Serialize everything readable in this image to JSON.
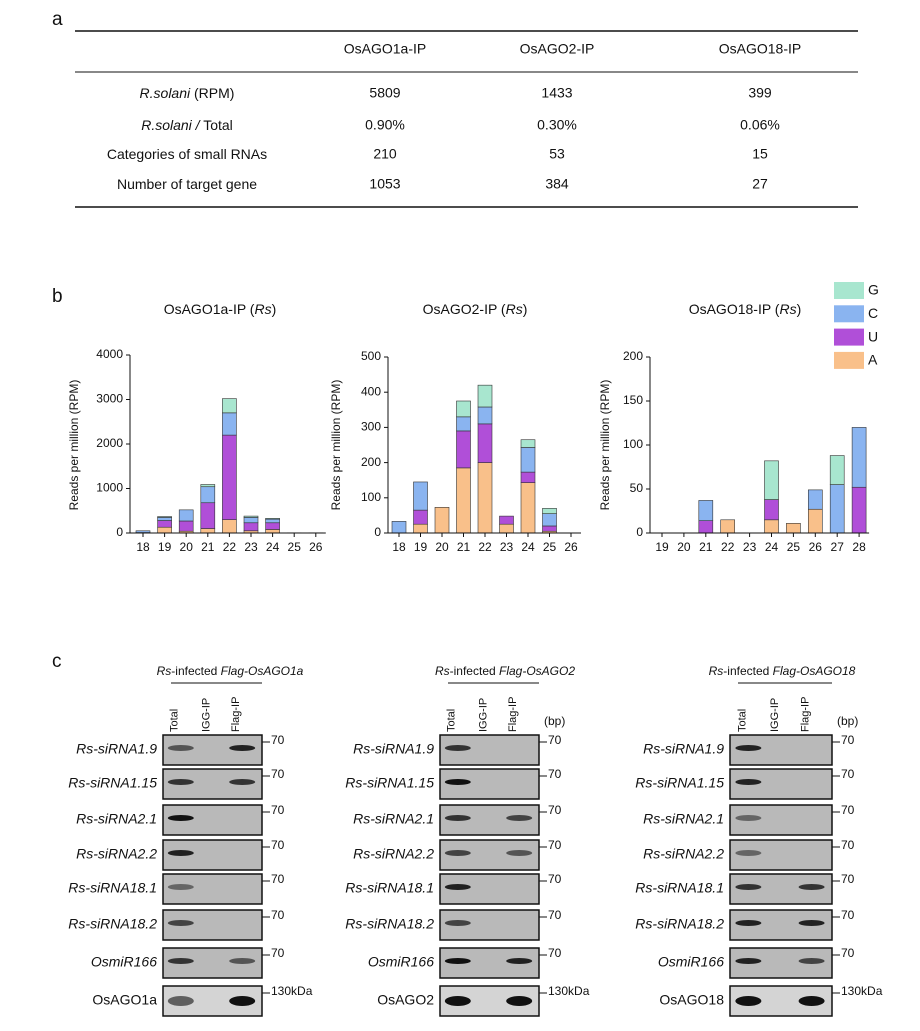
{
  "panel_a": {
    "label": "a",
    "columns": [
      "OsAGO1a-IP",
      "OsAGO2-IP",
      "OsAGO18-IP"
    ],
    "rows": [
      {
        "label": [
          {
            "text": "R.solani",
            "italic": true
          },
          {
            "text": " (RPM)"
          }
        ],
        "cells": [
          5809,
          1433,
          399
        ]
      },
      {
        "label": [
          {
            "text": "R.solani /",
            "italic": true
          },
          {
            "text": " Total"
          }
        ],
        "cells": [
          "0.90%",
          "0.30%",
          "0.06%"
        ]
      },
      {
        "label": [
          {
            "text": "Categories of small RNAs"
          }
        ],
        "cells": [
          210,
          53,
          15
        ]
      },
      {
        "label": [
          {
            "text": "Number of target gene"
          }
        ],
        "cells": [
          1053,
          384,
          27
        ]
      }
    ]
  },
  "panel_b": {
    "label": "b"
  },
  "chart_data": [
    {
      "type": "bar",
      "stacked": true,
      "title": [
        {
          "text": "OsAGO1a-IP ("
        },
        {
          "text": "Rs",
          "italic": true
        },
        {
          "text": ")"
        }
      ],
      "y_label": "Reads per million (RPM)",
      "categories": [
        18,
        19,
        20,
        21,
        22,
        23,
        24,
        25,
        26
      ],
      "series": [
        {
          "name": "A",
          "color": "#f9c08a",
          "values": [
            10,
            130,
            40,
            100,
            300,
            50,
            80,
            0,
            0
          ]
        },
        {
          "name": "U",
          "color": "#b04fd8",
          "values": [
            0,
            150,
            230,
            580,
            1900,
            180,
            150,
            0,
            0
          ]
        },
        {
          "name": "C",
          "color": "#8ab4f0",
          "values": [
            40,
            70,
            250,
            360,
            500,
            120,
            80,
            5,
            5
          ]
        },
        {
          "name": "G",
          "color": "#a8e6cf",
          "values": [
            0,
            20,
            0,
            50,
            320,
            30,
            20,
            0,
            0
          ]
        }
      ],
      "ylim": [
        0,
        4000
      ],
      "yticks": [
        0,
        1000,
        2000,
        3000,
        4000
      ]
    },
    {
      "type": "bar",
      "stacked": true,
      "title": [
        {
          "text": "OsAGO2-IP ("
        },
        {
          "text": "Rs",
          "italic": true
        },
        {
          "text": ")"
        }
      ],
      "y_label": "Reads per million (RPM)",
      "categories": [
        18,
        19,
        20,
        21,
        22,
        23,
        24,
        25,
        26
      ],
      "series": [
        {
          "name": "A",
          "color": "#f9c08a",
          "values": [
            0,
            25,
            73,
            185,
            200,
            25,
            143,
            5,
            0
          ]
        },
        {
          "name": "U",
          "color": "#b04fd8",
          "values": [
            0,
            40,
            0,
            105,
            110,
            23,
            30,
            15,
            0
          ]
        },
        {
          "name": "C",
          "color": "#8ab4f0",
          "values": [
            33,
            80,
            0,
            40,
            48,
            0,
            70,
            35,
            0
          ]
        },
        {
          "name": "G",
          "color": "#a8e6cf",
          "values": [
            0,
            0,
            0,
            45,
            62,
            0,
            22,
            15,
            0
          ]
        }
      ],
      "ylim": [
        0,
        500
      ],
      "yticks": [
        0,
        100,
        200,
        300,
        400,
        500
      ]
    },
    {
      "type": "bar",
      "stacked": true,
      "title": [
        {
          "text": "OsAGO18-IP ("
        },
        {
          "text": "Rs",
          "italic": true
        },
        {
          "text": ")"
        }
      ],
      "y_label": "Reads per million (RPM)",
      "categories": [
        19,
        20,
        21,
        22,
        23,
        24,
        25,
        26,
        27,
        28
      ],
      "series": [
        {
          "name": "A",
          "color": "#f9c08a",
          "values": [
            0,
            0,
            0,
            15,
            0,
            15,
            11,
            27,
            0,
            0
          ]
        },
        {
          "name": "U",
          "color": "#b04fd8",
          "values": [
            0,
            0,
            14,
            0,
            0,
            23,
            0,
            0,
            0,
            52
          ]
        },
        {
          "name": "C",
          "color": "#8ab4f0",
          "values": [
            0,
            0,
            23,
            0,
            0,
            0,
            0,
            22,
            55,
            68
          ]
        },
        {
          "name": "G",
          "color": "#a8e6cf",
          "values": [
            0,
            0,
            0,
            0,
            0,
            44,
            0,
            0,
            33,
            0
          ]
        }
      ],
      "ylim": [
        0,
        200
      ],
      "yticks": [
        0,
        50,
        100,
        150,
        200
      ],
      "legend": "right"
    }
  ],
  "panel_c": {
    "label": "c",
    "blocks": [
      {
        "title": [
          {
            "text": "Rs",
            "italic": true
          },
          {
            "text": "-infected "
          },
          {
            "text": "Flag-OsAGO1a",
            "italic": true
          }
        ],
        "lanes": [
          "Total",
          "IGG-IP",
          "Flag-IP"
        ],
        "rows": [
          {
            "label": "Rs-siRNA1.9",
            "marker": 70
          },
          {
            "label": "Rs-siRNA1.15",
            "marker": 70
          },
          {
            "label": "Rs-siRNA2.1",
            "marker": 70
          },
          {
            "label": "Rs-siRNA2.2",
            "marker": 70
          },
          {
            "label": "Rs-siRNA18.1",
            "marker": 70
          },
          {
            "label": "Rs-siRNA18.2",
            "marker": 70
          },
          {
            "label": "OsmiR166",
            "marker": 70
          },
          {
            "label": "OsAGO1a",
            "marker": "130kDa"
          }
        ]
      },
      {
        "title": [
          {
            "text": "Rs",
            "italic": true
          },
          {
            "text": "-infected "
          },
          {
            "text": "Flag-OsAGO2",
            "italic": true
          }
        ],
        "lanes": [
          "Total",
          "IGG-IP",
          "Flag-IP"
        ],
        "unit": "(bp)",
        "rows": [
          {
            "label": "Rs-siRNA1.9",
            "marker": 70
          },
          {
            "label": "Rs-siRNA1.15",
            "marker": 70
          },
          {
            "label": "Rs-siRNA2.1",
            "marker": 70
          },
          {
            "label": "Rs-siRNA2.2",
            "marker": 70
          },
          {
            "label": "Rs-siRNA18.1",
            "marker": 70
          },
          {
            "label": "Rs-siRNA18.2",
            "marker": 70
          },
          {
            "label": "OsmiR166",
            "marker": 70
          },
          {
            "label": "OsAGO2",
            "marker": "130kDa"
          }
        ]
      },
      {
        "title": [
          {
            "text": "Rs",
            "italic": true
          },
          {
            "text": "-infected "
          },
          {
            "text": "Flag-OsAGO18",
            "italic": true
          }
        ],
        "lanes": [
          "Total",
          "IGG-IP",
          "Flag-IP"
        ],
        "unit": "(bp)",
        "rows": [
          {
            "label": "Rs-siRNA1.9",
            "marker": 70
          },
          {
            "label": "Rs-siRNA1.15",
            "marker": 70
          },
          {
            "label": "Rs-siRNA2.1",
            "marker": 70
          },
          {
            "label": "Rs-siRNA2.2",
            "marker": 70
          },
          {
            "label": "Rs-siRNA18.1",
            "marker": 70
          },
          {
            "label": "Rs-siRNA18.2",
            "marker": 70
          },
          {
            "label": "OsmiR166",
            "marker": 70
          },
          {
            "label": "OsAGO18",
            "marker": "130kDa"
          }
        ]
      }
    ]
  }
}
